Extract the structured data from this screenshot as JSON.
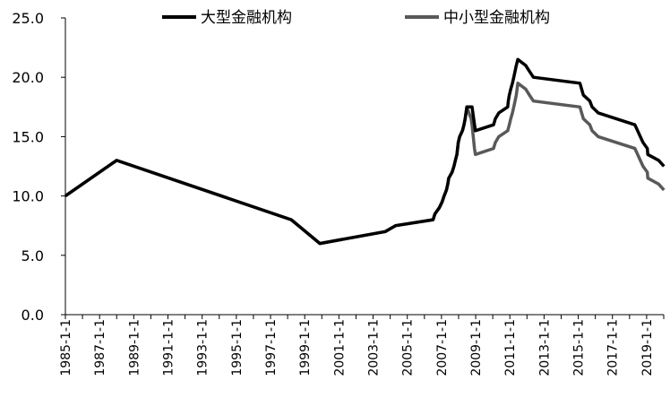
{
  "chart_data": {
    "type": "line",
    "ylim": [
      0,
      25
    ],
    "yticks": [
      0,
      5,
      10,
      15,
      20,
      25
    ],
    "ytick_labels": [
      "0.0",
      "5.0",
      "10.0",
      "15.0",
      "20.0",
      "25.0"
    ],
    "xlim": [
      "1985-01-01",
      "2020-01-01"
    ],
    "xtick_labels": [
      "1985-1-1",
      "1987-1-1",
      "1989-1-1",
      "1991-1-1",
      "1993-1-1",
      "1995-1-1",
      "1997-1-1",
      "1999-1-1",
      "2001-1-1",
      "2003-1-1",
      "2005-1-1",
      "2007-1-1",
      "2009-1-1",
      "2011-1-1",
      "2013-1-1",
      "2015-1-1",
      "2017-1-1",
      "2019-1-1"
    ],
    "grid": false,
    "legend_position": "top",
    "series": [
      {
        "name": "大型金融机构",
        "color": "#000000",
        "points": [
          [
            "1985-01-01",
            10.0
          ],
          [
            "1988-01-01",
            13.0
          ],
          [
            "1998-03-21",
            8.0
          ],
          [
            "1999-11-21",
            6.0
          ],
          [
            "2003-09-21",
            7.0
          ],
          [
            "2004-04-25",
            7.5
          ],
          [
            "2006-07-05",
            8.0
          ],
          [
            "2006-08-15",
            8.5
          ],
          [
            "2006-11-15",
            9.0
          ],
          [
            "2007-01-15",
            9.5
          ],
          [
            "2007-02-25",
            10.0
          ],
          [
            "2007-04-16",
            10.5
          ],
          [
            "2007-05-15",
            11.0
          ],
          [
            "2007-06-05",
            11.5
          ],
          [
            "2007-08-15",
            12.0
          ],
          [
            "2007-09-25",
            12.5
          ],
          [
            "2007-10-25",
            13.0
          ],
          [
            "2007-11-26",
            13.5
          ],
          [
            "2007-12-25",
            14.5
          ],
          [
            "2008-01-25",
            15.0
          ],
          [
            "2008-03-25",
            15.5
          ],
          [
            "2008-04-25",
            16.0
          ],
          [
            "2008-05-20",
            16.5
          ],
          [
            "2008-06-25",
            17.5
          ],
          [
            "2008-10-15",
            17.5
          ],
          [
            "2008-12-25",
            15.5
          ],
          [
            "2010-01-18",
            16.0
          ],
          [
            "2010-02-25",
            16.5
          ],
          [
            "2010-05-10",
            17.0
          ],
          [
            "2010-11-16",
            17.5
          ],
          [
            "2010-11-29",
            18.0
          ],
          [
            "2010-12-20",
            18.5
          ],
          [
            "2011-01-20",
            19.0
          ],
          [
            "2011-02-24",
            19.5
          ],
          [
            "2011-03-25",
            20.0
          ],
          [
            "2011-04-21",
            20.5
          ],
          [
            "2011-05-18",
            21.0
          ],
          [
            "2011-06-20",
            21.5
          ],
          [
            "2011-12-05",
            21.0
          ],
          [
            "2012-02-24",
            20.5
          ],
          [
            "2012-05-18",
            20.0
          ],
          [
            "2015-02-05",
            19.5
          ],
          [
            "2015-04-20",
            18.5
          ],
          [
            "2015-09-06",
            18.0
          ],
          [
            "2015-10-24",
            17.5
          ],
          [
            "2016-03-01",
            17.0
          ],
          [
            "2018-04-25",
            16.0
          ],
          [
            "2018-10-15",
            14.5
          ],
          [
            "2019-01-15",
            14.0
          ],
          [
            "2019-01-25",
            13.5
          ],
          [
            "2019-09-16",
            13.0
          ],
          [
            "2020-01-06",
            12.5
          ]
        ]
      },
      {
        "name": "中小型金融机构",
        "color": "#595959",
        "points": [
          [
            "1985-01-01",
            10.0
          ],
          [
            "1988-01-01",
            13.0
          ],
          [
            "1998-03-21",
            8.0
          ],
          [
            "1999-11-21",
            6.0
          ],
          [
            "2003-09-21",
            7.0
          ],
          [
            "2004-04-25",
            7.5
          ],
          [
            "2006-07-05",
            8.0
          ],
          [
            "2006-08-15",
            8.5
          ],
          [
            "2006-11-15",
            9.0
          ],
          [
            "2007-01-15",
            9.5
          ],
          [
            "2007-02-25",
            10.0
          ],
          [
            "2007-04-16",
            10.5
          ],
          [
            "2007-05-15",
            11.0
          ],
          [
            "2007-06-05",
            11.5
          ],
          [
            "2007-08-15",
            12.0
          ],
          [
            "2007-09-25",
            12.5
          ],
          [
            "2007-10-25",
            13.0
          ],
          [
            "2007-11-26",
            13.5
          ],
          [
            "2007-12-25",
            14.5
          ],
          [
            "2008-01-25",
            15.0
          ],
          [
            "2008-03-25",
            15.5
          ],
          [
            "2008-04-25",
            16.0
          ],
          [
            "2008-05-20",
            16.5
          ],
          [
            "2008-06-25",
            17.5
          ],
          [
            "2008-09-25",
            16.5
          ],
          [
            "2008-10-15",
            16.0
          ],
          [
            "2008-12-05",
            14.0
          ],
          [
            "2008-12-25",
            13.5
          ],
          [
            "2010-01-18",
            14.0
          ],
          [
            "2010-02-25",
            14.5
          ],
          [
            "2010-05-10",
            15.0
          ],
          [
            "2010-11-16",
            15.5
          ],
          [
            "2010-12-20",
            16.0
          ],
          [
            "2011-01-20",
            16.5
          ],
          [
            "2011-02-24",
            17.0
          ],
          [
            "2011-03-25",
            17.5
          ],
          [
            "2011-04-21",
            18.0
          ],
          [
            "2011-05-18",
            18.5
          ],
          [
            "2011-06-20",
            19.5
          ],
          [
            "2011-12-05",
            19.0
          ],
          [
            "2012-02-24",
            18.5
          ],
          [
            "2012-05-18",
            18.0
          ],
          [
            "2015-02-05",
            17.5
          ],
          [
            "2015-04-20",
            16.5
          ],
          [
            "2015-09-06",
            16.0
          ],
          [
            "2015-10-24",
            15.5
          ],
          [
            "2016-03-01",
            15.0
          ],
          [
            "2018-04-25",
            14.0
          ],
          [
            "2018-10-15",
            12.5
          ],
          [
            "2019-01-15",
            12.0
          ],
          [
            "2019-01-25",
            11.5
          ],
          [
            "2019-09-16",
            11.0
          ],
          [
            "2020-01-06",
            10.5
          ]
        ]
      }
    ]
  }
}
